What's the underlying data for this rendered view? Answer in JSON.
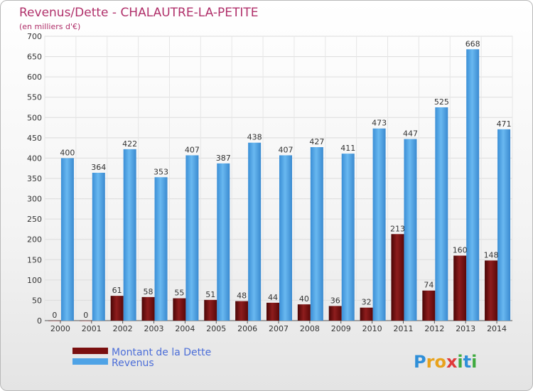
{
  "chart_data": {
    "type": "bar",
    "title": "Revenus/Dette - CHALAUTRE-LA-PETITE",
    "subtitle": "(en milliers d'€)",
    "categories": [
      "2000",
      "2001",
      "2002",
      "2003",
      "2004",
      "2005",
      "2006",
      "2007",
      "2008",
      "2009",
      "2010",
      "2011",
      "2012",
      "2013",
      "2014"
    ],
    "series": [
      {
        "name": "Montant de la Dette",
        "color": "#7a0f0f",
        "values": [
          0,
          0,
          61,
          58,
          55,
          51,
          48,
          44,
          40,
          36,
          32,
          213,
          74,
          160,
          148
        ]
      },
      {
        "name": "Revenus",
        "color": "#4fa3e6",
        "values": [
          400,
          364,
          422,
          353,
          407,
          387,
          438,
          407,
          427,
          411,
          473,
          447,
          525,
          668,
          471
        ]
      }
    ],
    "ylim": [
      0,
      700
    ],
    "yticks": [
      0,
      50,
      100,
      150,
      200,
      250,
      300,
      350,
      400,
      450,
      500,
      550,
      600,
      650,
      700
    ],
    "xlabel": "",
    "ylabel": "",
    "grid": true,
    "legend": "bottom-left"
  },
  "branding": {
    "logo_letters": [
      "P",
      "r",
      "o",
      "x",
      "i",
      "t",
      "i"
    ],
    "logo_colors": [
      "#2f8fd8",
      "#e8a21c",
      "#e8a21c",
      "#e03a3a",
      "#3faa3f",
      "#2f8fd8",
      "#3faa3f"
    ]
  }
}
